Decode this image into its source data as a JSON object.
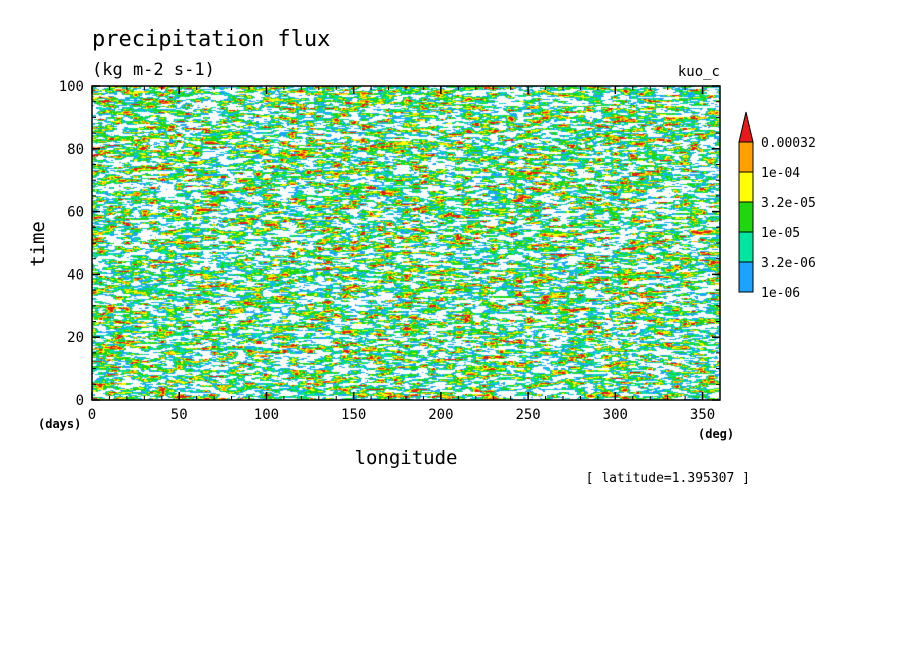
{
  "chart_data": {
    "type": "heatmap",
    "title": "precipitation flux",
    "subtitle": "(kg m-2 s-1)",
    "experiment": "kuo_c",
    "xlabel": "longitude",
    "ylabel": "time",
    "x_unit": "(deg)",
    "y_unit": "(days)",
    "xlim": [
      0,
      360
    ],
    "ylim": [
      0,
      100
    ],
    "x_ticks": [
      "0",
      "50",
      "100",
      "150",
      "200",
      "250",
      "300",
      "350"
    ],
    "y_ticks": [
      "0",
      "20",
      "40",
      "60",
      "80",
      "100"
    ],
    "x_tick_values": [
      0,
      50,
      100,
      150,
      200,
      250,
      300,
      350
    ],
    "y_tick_values": [
      0,
      20,
      40,
      60,
      80,
      100
    ],
    "footnote": "[ latitude=1.395307 ]",
    "legend": {
      "placement": "right",
      "labels": [
        "1e-06",
        "3.2e-06",
        "1e-05",
        "3.2e-05",
        "1e-04",
        "0.00032"
      ],
      "levels": [
        1e-06,
        3.2e-06,
        1e-05,
        3.2e-05,
        0.0001,
        0.00032
      ],
      "colors": [
        "#1aa3ff",
        "#00e6a0",
        "#1fd60f",
        "#ffff00",
        "#ff9f00",
        "#e61a1a"
      ]
    }
  }
}
